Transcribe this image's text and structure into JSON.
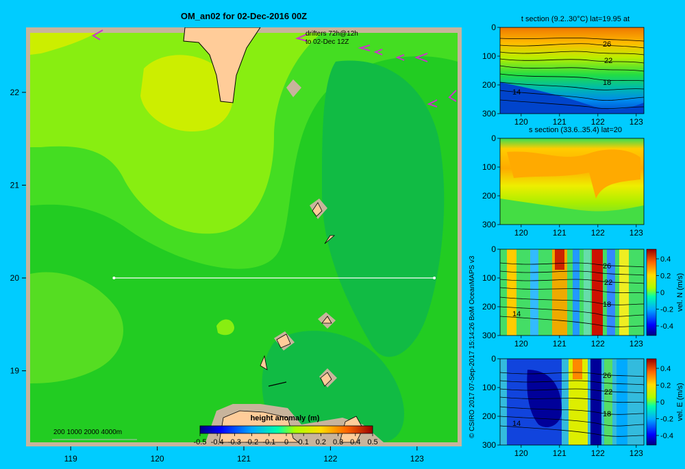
{
  "main_map": {
    "title": "OM_an02 for 02-Dec-2016 00Z",
    "drifters_label_1": "drifters 72h@12h",
    "drifters_label_2": "to 02-Dec 12Z",
    "x_ticks": [
      "119",
      "120",
      "121",
      "122",
      "123"
    ],
    "y_ticks": [
      "22",
      "21",
      "20",
      "19"
    ],
    "xlim": [
      118.5,
      123.5
    ],
    "ylim": [
      18.2,
      22.7
    ],
    "section_line": {
      "lat": 20,
      "lon_start": 119.5,
      "lon_end": 123.2
    },
    "depth_legend": "200  1000  2000  4000m",
    "colorbar": {
      "label": "height anomaly (m)",
      "ticks": [
        "-0.5",
        "-0.4",
        "-0.3",
        "-0.2",
        "-0.1",
        "0",
        "0.1",
        "0.2",
        "0.3",
        "0.4",
        "0.5"
      ],
      "range": [
        -0.5,
        0.5
      ]
    }
  },
  "credit": "© CSIRO 2017   07-Sep-2017 15:14:26 BoM OceanMAPS v3",
  "panels": [
    {
      "title": "t section (9.2..30°C) lat=19.95 at",
      "x_ticks": [
        "120",
        "121",
        "122",
        "123"
      ],
      "y_ticks": [
        "0",
        "100",
        "200",
        "300"
      ],
      "contours": [
        "26",
        "22",
        "18",
        "14"
      ]
    },
    {
      "title": "s section (33.6..35.4) lat=20",
      "x_ticks": [
        "120",
        "121",
        "122",
        "123"
      ],
      "y_ticks": [
        "0",
        "100",
        "200",
        "300"
      ]
    },
    {
      "title": "",
      "x_ticks": [
        "120",
        "121",
        "122",
        "123"
      ],
      "y_ticks": [
        "0",
        "100",
        "200",
        "300"
      ],
      "contours": [
        "26",
        "22",
        "18",
        "14"
      ],
      "colorbar_ticks": [
        "0.4",
        "0.2",
        "0",
        "-0.2",
        "-0.4"
      ],
      "colorbar_label": "vel. N (m/s)"
    },
    {
      "title": "",
      "x_ticks": [
        "120",
        "121",
        "122",
        "123"
      ],
      "y_ticks": [
        "0",
        "100",
        "200",
        "300"
      ],
      "contours": [
        "26",
        "22",
        "18",
        "14"
      ],
      "colorbar_ticks": [
        "0.4",
        "0.2",
        "0",
        "-0.2",
        "-0.4"
      ],
      "colorbar_label": "vel. E (m/s)"
    }
  ],
  "chart_data": {
    "type": "heatmap",
    "title": "OM_an02 for 02-Dec-2016 00Z",
    "xlabel": "",
    "ylabel": "",
    "xlim": [
      118.5,
      123.5
    ],
    "ylim": [
      18.2,
      22.7
    ],
    "colors": {
      "background": "#00ccff",
      "land": "#ffcc99",
      "shelf": "#c8b49c",
      "drifter": "#cc33cc"
    }
  }
}
